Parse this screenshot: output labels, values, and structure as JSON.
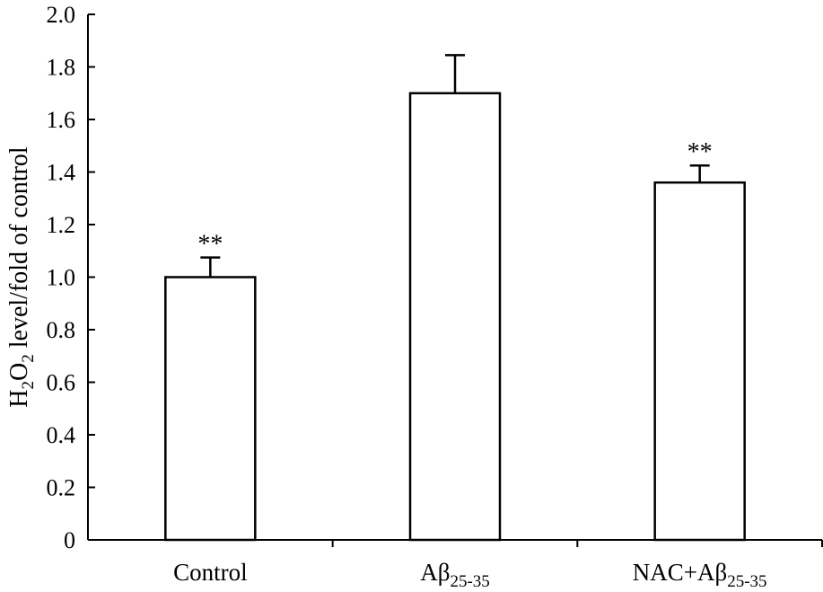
{
  "chart_data": {
    "type": "bar",
    "title": "",
    "xlabel": "",
    "ylabel": {
      "parts": [
        {
          "text": "H",
          "sub": false
        },
        {
          "text": "2",
          "sub": true
        },
        {
          "text": "O",
          "sub": false
        },
        {
          "text": "2",
          "sub": true
        },
        {
          "text": " level/fold of control",
          "sub": false
        }
      ]
    },
    "ylim": [
      0,
      2.0
    ],
    "yticks": [
      "0",
      "0.2",
      "0.4",
      "0.6",
      "0.8",
      "1.0",
      "1.2",
      "1.4",
      "1.6",
      "1.8",
      "2.0"
    ],
    "ytick_values": [
      0,
      0.2,
      0.4,
      0.6,
      0.8,
      1.0,
      1.2,
      1.4,
      1.6,
      1.8,
      2.0
    ],
    "categories": [
      {
        "id": "control",
        "parts": [
          {
            "text": "Control",
            "sub": false
          }
        ]
      },
      {
        "id": "abeta",
        "parts": [
          {
            "text": "Aβ",
            "sub": false
          },
          {
            "text": "25-35",
            "sub": true
          }
        ]
      },
      {
        "id": "nac-abeta",
        "parts": [
          {
            "text": "NAC+Aβ",
            "sub": false
          },
          {
            "text": "25-35",
            "sub": true
          }
        ]
      }
    ],
    "values": [
      1.0,
      1.7,
      1.36
    ],
    "errors": [
      0.075,
      0.145,
      0.065
    ],
    "significance": [
      "**",
      "",
      "**"
    ],
    "colors": {
      "bar_fill": "#ffffff",
      "stroke": "#000000"
    },
    "grid": false,
    "legend": "none"
  }
}
